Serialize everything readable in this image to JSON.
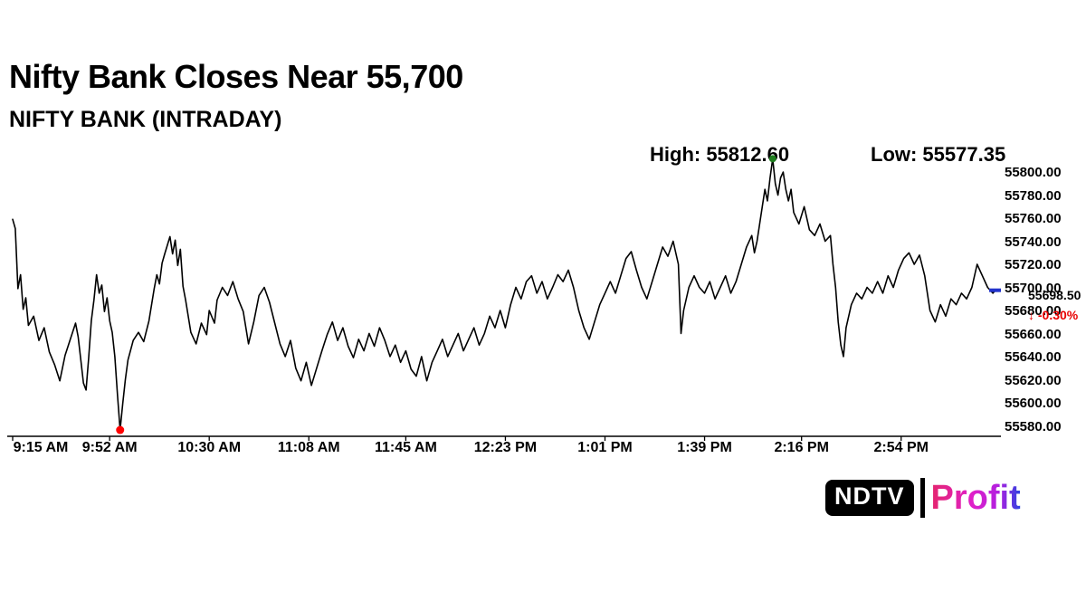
{
  "header": {
    "title": "Nifty Bank Closes Near 55,700",
    "subtitle": "NIFTY BANK (INTRADAY)"
  },
  "annotations": {
    "high_label": "High: 55812.60",
    "low_label": "Low: 55577.35",
    "last_price": "55698.50",
    "change": "↓ -0.30%",
    "change_color": "#e80000"
  },
  "logo": {
    "ndtv": "NDTV",
    "profit": "Profit"
  },
  "chart_data": {
    "type": "line",
    "title": "NIFTY BANK (INTRADAY)",
    "x_unit": "minutes since 9:15 AM",
    "x_range": [
      0,
      375
    ],
    "y_range": [
      55580,
      55800
    ],
    "grid": false,
    "legend": false,
    "background": "#ffffff",
    "line_color": "#000000",
    "x_ticks": [
      {
        "t": 0,
        "label": "9:15 AM"
      },
      {
        "t": 37,
        "label": "9:52 AM"
      },
      {
        "t": 75,
        "label": "10:30 AM"
      },
      {
        "t": 113,
        "label": "11:08 AM"
      },
      {
        "t": 150,
        "label": "11:45 AM"
      },
      {
        "t": 188,
        "label": "12:23 PM"
      },
      {
        "t": 226,
        "label": "1:01 PM"
      },
      {
        "t": 264,
        "label": "1:39 PM"
      },
      {
        "t": 301,
        "label": "2:16 PM"
      },
      {
        "t": 339,
        "label": "2:54 PM"
      }
    ],
    "y_ticks": [
      "55800.00",
      "55780.00",
      "55760.00",
      "55740.00",
      "55720.00",
      "55700.00",
      "55680.00",
      "55660.00",
      "55640.00",
      "55620.00",
      "55600.00",
      "55580.00"
    ],
    "high": {
      "t": 290,
      "price": 55812.6,
      "marker_color": "#1e7d1e"
    },
    "low": {
      "t": 41,
      "price": 55577.35,
      "marker_color": "#ff0000"
    },
    "close": {
      "t": 375,
      "price": 55698.5,
      "marker_color": "#2233cc"
    },
    "points": [
      [
        0,
        55760
      ],
      [
        1,
        55752
      ],
      [
        2,
        55700
      ],
      [
        3,
        55712
      ],
      [
        4,
        55682
      ],
      [
        5,
        55692
      ],
      [
        6,
        55668
      ],
      [
        8,
        55676
      ],
      [
        10,
        55655
      ],
      [
        12,
        55666
      ],
      [
        14,
        55645
      ],
      [
        16,
        55634
      ],
      [
        18,
        55620
      ],
      [
        20,
        55642
      ],
      [
        22,
        55656
      ],
      [
        24,
        55670
      ],
      [
        25,
        55658
      ],
      [
        26,
        55638
      ],
      [
        27,
        55618
      ],
      [
        28,
        55612
      ],
      [
        29,
        55640
      ],
      [
        30,
        55672
      ],
      [
        31,
        55690
      ],
      [
        32,
        55712
      ],
      [
        33,
        55696
      ],
      [
        34,
        55703
      ],
      [
        35,
        55680
      ],
      [
        36,
        55692
      ],
      [
        37,
        55672
      ],
      [
        38,
        55662
      ],
      [
        39,
        55641
      ],
      [
        40,
        55608
      ],
      [
        41,
        55577.35
      ],
      [
        42,
        55600
      ],
      [
        43,
        55621
      ],
      [
        44,
        55638
      ],
      [
        46,
        55655
      ],
      [
        48,
        55662
      ],
      [
        50,
        55654
      ],
      [
        52,
        55672
      ],
      [
        54,
        55700
      ],
      [
        55,
        55712
      ],
      [
        56,
        55704
      ],
      [
        57,
        55722
      ],
      [
        58,
        55730
      ],
      [
        60,
        55745
      ],
      [
        61,
        55730
      ],
      [
        62,
        55742
      ],
      [
        63,
        55720
      ],
      [
        64,
        55734
      ],
      [
        65,
        55702
      ],
      [
        66,
        55690
      ],
      [
        68,
        55662
      ],
      [
        70,
        55652
      ],
      [
        72,
        55670
      ],
      [
        74,
        55660
      ],
      [
        75,
        55681
      ],
      [
        77,
        55670
      ],
      [
        78,
        55690
      ],
      [
        80,
        55701
      ],
      [
        82,
        55694
      ],
      [
        84,
        55706
      ],
      [
        86,
        55691
      ],
      [
        88,
        55680
      ],
      [
        90,
        55652
      ],
      [
        92,
        55671
      ],
      [
        94,
        55694
      ],
      [
        96,
        55701
      ],
      [
        98,
        55688
      ],
      [
        100,
        55670
      ],
      [
        102,
        55652
      ],
      [
        104,
        55641
      ],
      [
        106,
        55655
      ],
      [
        108,
        55631
      ],
      [
        110,
        55620
      ],
      [
        112,
        55636
      ],
      [
        114,
        55616
      ],
      [
        116,
        55631
      ],
      [
        118,
        55646
      ],
      [
        120,
        55660
      ],
      [
        122,
        55671
      ],
      [
        124,
        55655
      ],
      [
        126,
        55666
      ],
      [
        128,
        55650
      ],
      [
        130,
        55640
      ],
      [
        132,
        55656
      ],
      [
        134,
        55646
      ],
      [
        136,
        55661
      ],
      [
        138,
        55650
      ],
      [
        140,
        55666
      ],
      [
        142,
        55655
      ],
      [
        144,
        55641
      ],
      [
        146,
        55651
      ],
      [
        148,
        55636
      ],
      [
        150,
        55646
      ],
      [
        152,
        55630
      ],
      [
        154,
        55624
      ],
      [
        156,
        55641
      ],
      [
        158,
        55620
      ],
      [
        160,
        55636
      ],
      [
        162,
        55646
      ],
      [
        164,
        55656
      ],
      [
        166,
        55641
      ],
      [
        168,
        55651
      ],
      [
        170,
        55661
      ],
      [
        172,
        55646
      ],
      [
        174,
        55656
      ],
      [
        176,
        55666
      ],
      [
        178,
        55651
      ],
      [
        180,
        55661
      ],
      [
        182,
        55676
      ],
      [
        184,
        55666
      ],
      [
        186,
        55681
      ],
      [
        188,
        55666
      ],
      [
        190,
        55686
      ],
      [
        192,
        55701
      ],
      [
        194,
        55691
      ],
      [
        196,
        55706
      ],
      [
        198,
        55711
      ],
      [
        200,
        55696
      ],
      [
        202,
        55706
      ],
      [
        204,
        55691
      ],
      [
        206,
        55701
      ],
      [
        208,
        55712
      ],
      [
        210,
        55706
      ],
      [
        212,
        55716
      ],
      [
        214,
        55701
      ],
      [
        216,
        55681
      ],
      [
        218,
        55666
      ],
      [
        220,
        55656
      ],
      [
        222,
        55671
      ],
      [
        224,
        55686
      ],
      [
        226,
        55696
      ],
      [
        228,
        55706
      ],
      [
        230,
        55696
      ],
      [
        232,
        55711
      ],
      [
        234,
        55726
      ],
      [
        236,
        55732
      ],
      [
        238,
        55716
      ],
      [
        240,
        55701
      ],
      [
        242,
        55691
      ],
      [
        244,
        55706
      ],
      [
        246,
        55721
      ],
      [
        248,
        55736
      ],
      [
        250,
        55728
      ],
      [
        252,
        55741
      ],
      [
        254,
        55721
      ],
      [
        255,
        55661
      ],
      [
        256,
        55681
      ],
      [
        258,
        55701
      ],
      [
        260,
        55711
      ],
      [
        262,
        55701
      ],
      [
        264,
        55696
      ],
      [
        266,
        55706
      ],
      [
        268,
        55691
      ],
      [
        270,
        55701
      ],
      [
        272,
        55711
      ],
      [
        274,
        55696
      ],
      [
        276,
        55706
      ],
      [
        278,
        55721
      ],
      [
        280,
        55736
      ],
      [
        282,
        55746
      ],
      [
        283,
        55731
      ],
      [
        284,
        55741
      ],
      [
        285,
        55756
      ],
      [
        286,
        55771
      ],
      [
        287,
        55786
      ],
      [
        288,
        55776
      ],
      [
        289,
        55796
      ],
      [
        290,
        55812.6
      ],
      [
        291,
        55791
      ],
      [
        292,
        55781
      ],
      [
        293,
        55796
      ],
      [
        294,
        55801
      ],
      [
        295,
        55786
      ],
      [
        296,
        55776
      ],
      [
        297,
        55786
      ],
      [
        298,
        55766
      ],
      [
        300,
        55756
      ],
      [
        302,
        55771
      ],
      [
        304,
        55751
      ],
      [
        306,
        55746
      ],
      [
        308,
        55756
      ],
      [
        310,
        55741
      ],
      [
        312,
        55746
      ],
      [
        313,
        55721
      ],
      [
        314,
        55701
      ],
      [
        315,
        55671
      ],
      [
        316,
        55651
      ],
      [
        317,
        55641
      ],
      [
        318,
        55666
      ],
      [
        320,
        55686
      ],
      [
        322,
        55696
      ],
      [
        324,
        55691
      ],
      [
        326,
        55701
      ],
      [
        328,
        55696
      ],
      [
        330,
        55706
      ],
      [
        332,
        55696
      ],
      [
        334,
        55711
      ],
      [
        336,
        55701
      ],
      [
        338,
        55716
      ],
      [
        340,
        55726
      ],
      [
        342,
        55731
      ],
      [
        344,
        55721
      ],
      [
        346,
        55729
      ],
      [
        348,
        55711
      ],
      [
        350,
        55681
      ],
      [
        352,
        55671
      ],
      [
        354,
        55686
      ],
      [
        356,
        55676
      ],
      [
        358,
        55691
      ],
      [
        360,
        55686
      ],
      [
        362,
        55696
      ],
      [
        364,
        55691
      ],
      [
        366,
        55701
      ],
      [
        368,
        55721
      ],
      [
        370,
        55711
      ],
      [
        372,
        55701
      ],
      [
        374,
        55696
      ],
      [
        375,
        55698.5
      ]
    ]
  }
}
